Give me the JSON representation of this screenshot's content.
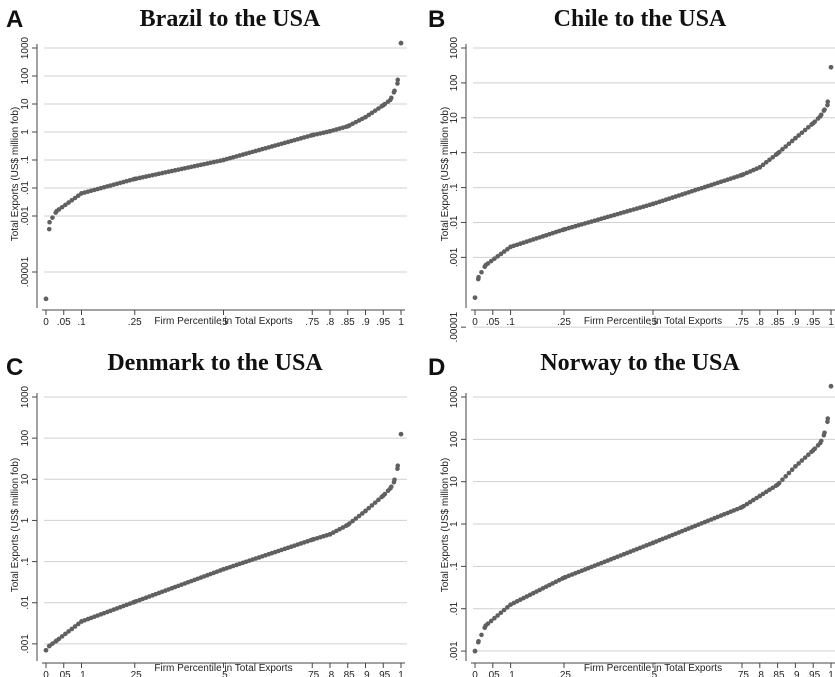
{
  "panels": [
    {
      "letter": "A",
      "title": "Brazil to the USA"
    },
    {
      "letter": "B",
      "title": "Chile to the USA"
    },
    {
      "letter": "C",
      "title": "Denmark to the USA"
    },
    {
      "letter": "D",
      "title": "Norway to the USA"
    }
  ],
  "colors": {
    "points": "#606060",
    "grid": "#d0d0d0",
    "axis": "#444444"
  },
  "chart_data": [
    {
      "type": "scatter",
      "title": "Brazil to the USA",
      "xlabel": "Firm Percentile in Total Exports",
      "ylabel": "Total Exports (US$ million fob)",
      "y_scale": "log",
      "x_ticks": [
        0,
        0.05,
        0.1,
        0.25,
        0.5,
        0.75,
        0.8,
        0.85,
        0.9,
        0.95,
        1
      ],
      "x_tick_labels": [
        "0",
        ".05",
        ".1",
        ".25",
        ".5",
        ".75",
        ".8",
        ".85",
        ".9",
        ".95",
        "1"
      ],
      "y_ticks": [
        1e-05,
        0.001,
        0.01,
        0.1,
        1,
        10,
        100,
        1000
      ],
      "y_tick_labels": [
        ".00001",
        ".001",
        ".01",
        ".1",
        "1",
        "10",
        "100",
        "1000"
      ],
      "grid": true,
      "x": [
        0,
        0.01,
        0.03,
        0.1,
        0.25,
        0.5,
        0.75,
        0.8,
        0.85,
        0.9,
        0.95,
        0.97,
        0.98,
        0.99,
        1
      ],
      "y": [
        1.1e-06,
        0.0006,
        0.0015,
        0.0064,
        0.021,
        0.1,
        0.77,
        1.06,
        1.6,
        3.4,
        9,
        14,
        26,
        54,
        1500
      ]
    },
    {
      "type": "scatter",
      "title": "Chile to the USA",
      "xlabel": "Firm Percentile in Total Exports",
      "ylabel": "Total Exports (US$ million fob)",
      "y_scale": "log",
      "x_ticks": [
        0,
        0.05,
        0.1,
        0.25,
        0.5,
        0.75,
        0.8,
        0.85,
        0.9,
        0.95,
        1
      ],
      "x_tick_labels": [
        "0",
        ".05",
        ".1",
        ".25",
        ".5",
        ".75",
        ".8",
        ".85",
        ".9",
        ".95",
        "1"
      ],
      "y_ticks": [
        1e-05,
        0.001,
        0.01,
        0.1,
        1,
        10,
        100,
        1000
      ],
      "y_tick_labels": [
        ".00001",
        ".001",
        ".01",
        ".1",
        "1",
        "10",
        "100",
        "1000"
      ],
      "grid": true,
      "x": [
        0,
        0.01,
        0.03,
        0.1,
        0.25,
        0.5,
        0.75,
        0.8,
        0.85,
        0.9,
        0.95,
        0.97,
        0.98,
        0.99,
        1
      ],
      "y": [
        7e-05,
        0.00027,
        0.0006,
        0.002,
        0.0063,
        0.034,
        0.23,
        0.38,
        0.95,
        2.6,
        7,
        11,
        16,
        23,
        280
      ]
    },
    {
      "type": "scatter",
      "title": "Denmark to the USA",
      "xlabel": "Firm Percentile in Total Exports",
      "ylabel": "Total Exports (US$ million fob)",
      "y_scale": "log",
      "x_ticks": [
        0,
        0.05,
        0.1,
        0.25,
        0.5,
        0.75,
        0.8,
        0.85,
        0.9,
        0.95,
        1
      ],
      "x_tick_labels": [
        "0",
        ".05",
        ".1",
        ".25",
        ".5",
        ".75",
        ".8",
        ".85",
        ".9",
        ".95",
        "1"
      ],
      "y_ticks": [
        0.001,
        0.01,
        0.1,
        1,
        10,
        100,
        1000
      ],
      "y_tick_labels": [
        ".001",
        ".01",
        ".1",
        "1",
        "10",
        "100",
        "1000"
      ],
      "grid": true,
      "x": [
        0,
        0.01,
        0.03,
        0.1,
        0.25,
        0.5,
        0.75,
        0.8,
        0.85,
        0.9,
        0.95,
        0.97,
        0.98,
        0.99,
        1
      ],
      "y": [
        0.0007,
        0.0009,
        0.0012,
        0.0035,
        0.0105,
        0.065,
        0.34,
        0.46,
        0.78,
        1.7,
        4,
        6,
        8.5,
        18,
        125
      ]
    },
    {
      "type": "scatter",
      "title": "Norway to the USA",
      "xlabel": "Firm Percentile in Total Exports",
      "ylabel": "Total Exports (US$ million fob)",
      "y_scale": "log",
      "x_ticks": [
        0,
        0.05,
        0.1,
        0.25,
        0.5,
        0.75,
        0.8,
        0.85,
        0.9,
        0.95,
        1
      ],
      "x_tick_labels": [
        "0",
        ".05",
        ".1",
        ".25",
        ".5",
        ".75",
        ".8",
        ".85",
        ".9",
        ".95",
        "1"
      ],
      "y_ticks": [
        0.001,
        0.01,
        0.1,
        1,
        10,
        100,
        1000
      ],
      "y_tick_labels": [
        ".001",
        ".01",
        ".1",
        "1",
        "10",
        "100",
        "1000"
      ],
      "grid": true,
      "x": [
        0,
        0.01,
        0.03,
        0.1,
        0.25,
        0.5,
        0.75,
        0.8,
        0.85,
        0.9,
        0.95,
        0.97,
        0.98,
        0.99,
        1
      ],
      "y": [
        0.001,
        0.0017,
        0.004,
        0.0125,
        0.054,
        0.36,
        2.5,
        4.6,
        8.5,
        23,
        55,
        82,
        125,
        260,
        1800
      ]
    }
  ]
}
